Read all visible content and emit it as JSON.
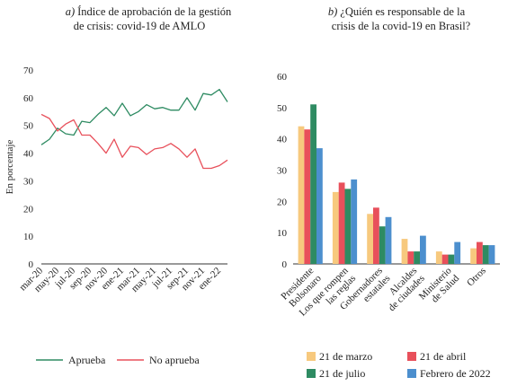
{
  "chart_data": [
    {
      "type": "line",
      "title_prefix": "a)",
      "title_line1": "Índice de aprobación de la gestión",
      "title_line2": "de crisis: covid-19 de AMLO",
      "ylabel": "En porcentaje",
      "ylim": [
        0,
        70
      ],
      "yticks": [
        0,
        10,
        20,
        30,
        40,
        50,
        60,
        70
      ],
      "xtick_labels": [
        "mar-20",
        "may-20",
        "jul-20",
        "sep-20",
        "nov-20",
        "ene-21",
        "mar-21",
        "may-21",
        "jul-21",
        "sep-21",
        "nov-21",
        "ene-22"
      ],
      "legend_position": "bottom",
      "series": [
        {
          "name": "Aprueba",
          "color": "#2e8b62",
          "values": [
            43,
            45,
            49,
            47,
            46.5,
            51.5,
            51,
            54,
            56.5,
            53.5,
            58,
            53.5,
            55,
            57.5,
            56,
            56.5,
            55.5,
            55.5,
            60,
            55.5,
            61.5,
            61,
            63,
            58.5
          ]
        },
        {
          "name": "No aprueba",
          "color": "#e8505b",
          "values": [
            54,
            52.5,
            48,
            50.5,
            52,
            46.5,
            46.5,
            43.5,
            40,
            45,
            38.5,
            42.5,
            42,
            39.5,
            41.5,
            42,
            43.5,
            41.5,
            38.5,
            41.5,
            34.5,
            34.5,
            35.5,
            37.5
          ]
        }
      ]
    },
    {
      "type": "bar",
      "title_prefix": "b)",
      "title_line1": "¿Quién es responsable de la",
      "title_line2": "crisis de la covid-19 en Brasil?",
      "ylim": [
        0,
        60
      ],
      "yticks": [
        0,
        10,
        20,
        30,
        40,
        50,
        60
      ],
      "categories": [
        [
          "Presidente",
          "Bolsonaro"
        ],
        [
          "Los que rompen",
          "las reglas"
        ],
        [
          "Gobernadores",
          "estatales"
        ],
        [
          "Alcaldes",
          "de ciudades"
        ],
        [
          "Ministerio",
          "de Salud"
        ],
        [
          "Otros"
        ]
      ],
      "legend_position": "bottom",
      "series": [
        {
          "name": "21 de marzo",
          "color": "#f7c97e",
          "values": [
            44,
            23,
            16,
            8,
            4,
            5
          ]
        },
        {
          "name": "21 de abril",
          "color": "#e8505b",
          "values": [
            43,
            26,
            18,
            4,
            3,
            7
          ]
        },
        {
          "name": "21 de julio",
          "color": "#2e8b62",
          "values": [
            51,
            24,
            12,
            4,
            3,
            6
          ]
        },
        {
          "name": "Febrero de 2022",
          "color": "#4c8fce",
          "values": [
            37,
            27,
            15,
            9,
            7,
            6
          ]
        }
      ]
    }
  ]
}
